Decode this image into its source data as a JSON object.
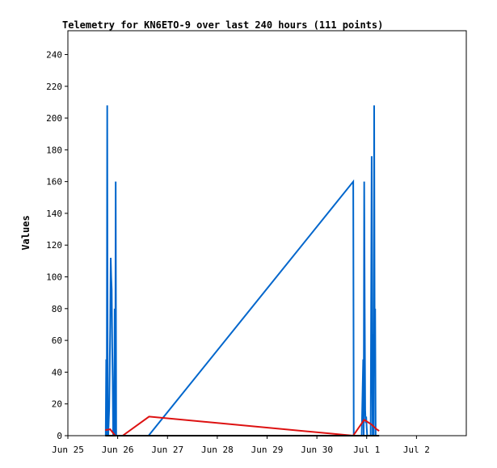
{
  "chart_data": {
    "type": "line",
    "title": "Telemetry for KN6ETO-9 over last 240 hours (111 points)",
    "xlabel": "",
    "ylabel": "Values",
    "x_ticks": [
      "Jun 25",
      "Jun 26",
      "Jun 27",
      "Jun 28",
      "Jun 29",
      "Jun 30",
      "Jul 1",
      "Jul 2"
    ],
    "y_ticks": [
      "0",
      "20",
      "40",
      "60",
      "80",
      "100",
      "120",
      "140",
      "160",
      "180",
      "200",
      "220",
      "240"
    ],
    "xlim_days": [
      0,
      8
    ],
    "ylim": [
      0,
      255
    ],
    "grid": false,
    "legend": "none",
    "x_unit": "days from Jun 25 00:00",
    "series": [
      {
        "name": "",
        "color": "#0066cc",
        "points": [
          [
            0.76,
            0
          ],
          [
            0.77,
            48
          ],
          [
            0.78,
            0
          ],
          [
            0.79,
            208
          ],
          [
            0.8,
            0
          ],
          [
            0.81,
            0
          ],
          [
            0.83,
            18
          ],
          [
            0.84,
            42
          ],
          [
            0.85,
            70
          ],
          [
            0.86,
            112
          ],
          [
            0.87,
            100
          ],
          [
            0.88,
            92
          ],
          [
            0.89,
            56
          ],
          [
            0.9,
            36
          ],
          [
            0.91,
            0
          ],
          [
            0.93,
            0
          ],
          [
            0.94,
            80
          ],
          [
            0.95,
            0
          ],
          [
            0.96,
            160
          ],
          [
            0.97,
            0
          ],
          [
            1.1,
            0
          ],
          [
            1.62,
            0
          ],
          [
            5.73,
            160
          ],
          [
            5.74,
            0
          ],
          [
            5.9,
            0
          ],
          [
            5.93,
            48
          ],
          [
            5.94,
            0
          ],
          [
            5.95,
            160
          ],
          [
            5.96,
            80
          ],
          [
            5.97,
            16
          ],
          [
            5.98,
            8
          ],
          [
            5.99,
            12
          ],
          [
            6.0,
            5
          ],
          [
            6.01,
            0
          ],
          [
            6.08,
            0
          ],
          [
            6.09,
            88
          ],
          [
            6.1,
            176
          ],
          [
            6.11,
            64
          ],
          [
            6.12,
            0
          ],
          [
            6.13,
            64
          ],
          [
            6.14,
            0
          ],
          [
            6.15,
            208
          ],
          [
            6.16,
            64
          ],
          [
            6.17,
            80
          ],
          [
            6.18,
            0
          ],
          [
            6.25,
            0
          ]
        ]
      },
      {
        "name": "",
        "color": "#dd1111",
        "points": [
          [
            0.75,
            3.5
          ],
          [
            0.85,
            4
          ],
          [
            0.95,
            0
          ],
          [
            1.1,
            0
          ],
          [
            1.63,
            12
          ],
          [
            5.73,
            0
          ],
          [
            5.95,
            10
          ],
          [
            6.1,
            7
          ],
          [
            6.2,
            4
          ],
          [
            6.25,
            3
          ]
        ]
      },
      {
        "name": "",
        "color": "#000000",
        "points": [
          [
            0.75,
            0
          ],
          [
            6.25,
            0
          ]
        ]
      }
    ]
  }
}
